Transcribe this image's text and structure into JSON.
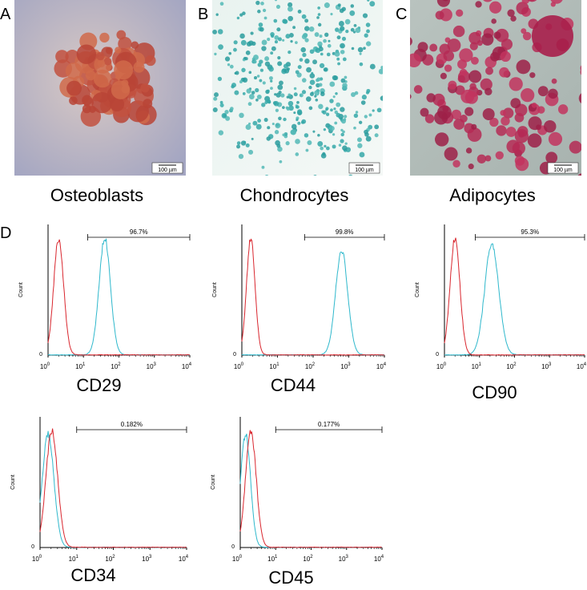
{
  "panels": [
    {
      "letter": "A",
      "caption": "Osteoblasts",
      "scale_bar": "100 µm"
    },
    {
      "letter": "B",
      "caption": "Chondrocytes",
      "scale_bar": "100 µm"
    },
    {
      "letter": "C",
      "caption": "Adipocytes",
      "scale_bar": "100 µm"
    }
  ],
  "flow_letter": "D",
  "tick_base": "10",
  "histograms": [
    {
      "marker": "CD29",
      "gate": "96.7%",
      "y_label": "Count",
      "y_zero": "0",
      "x_exponents": [
        "0",
        "1",
        "2",
        "3",
        "4"
      ]
    },
    {
      "marker": "CD44",
      "gate": "99.8%",
      "y_label": "Count",
      "y_zero": "0",
      "x_exponents": [
        "0",
        "1",
        "2",
        "3",
        "4"
      ]
    },
    {
      "marker": "CD90",
      "gate": "95.3%",
      "y_label": "Count",
      "y_zero": "0",
      "x_exponents": [
        "0",
        "1",
        "2",
        "3",
        "4"
      ]
    },
    {
      "marker": "CD34",
      "gate": "0.182%",
      "y_label": "Count",
      "y_zero": "0",
      "x_exponents": [
        "0",
        "1",
        "2",
        "3",
        "4"
      ]
    },
    {
      "marker": "CD45",
      "gate": "0.177%",
      "y_label": "Count",
      "y_zero": "0",
      "x_exponents": [
        "0",
        "1",
        "2",
        "3",
        "4"
      ]
    }
  ]
}
